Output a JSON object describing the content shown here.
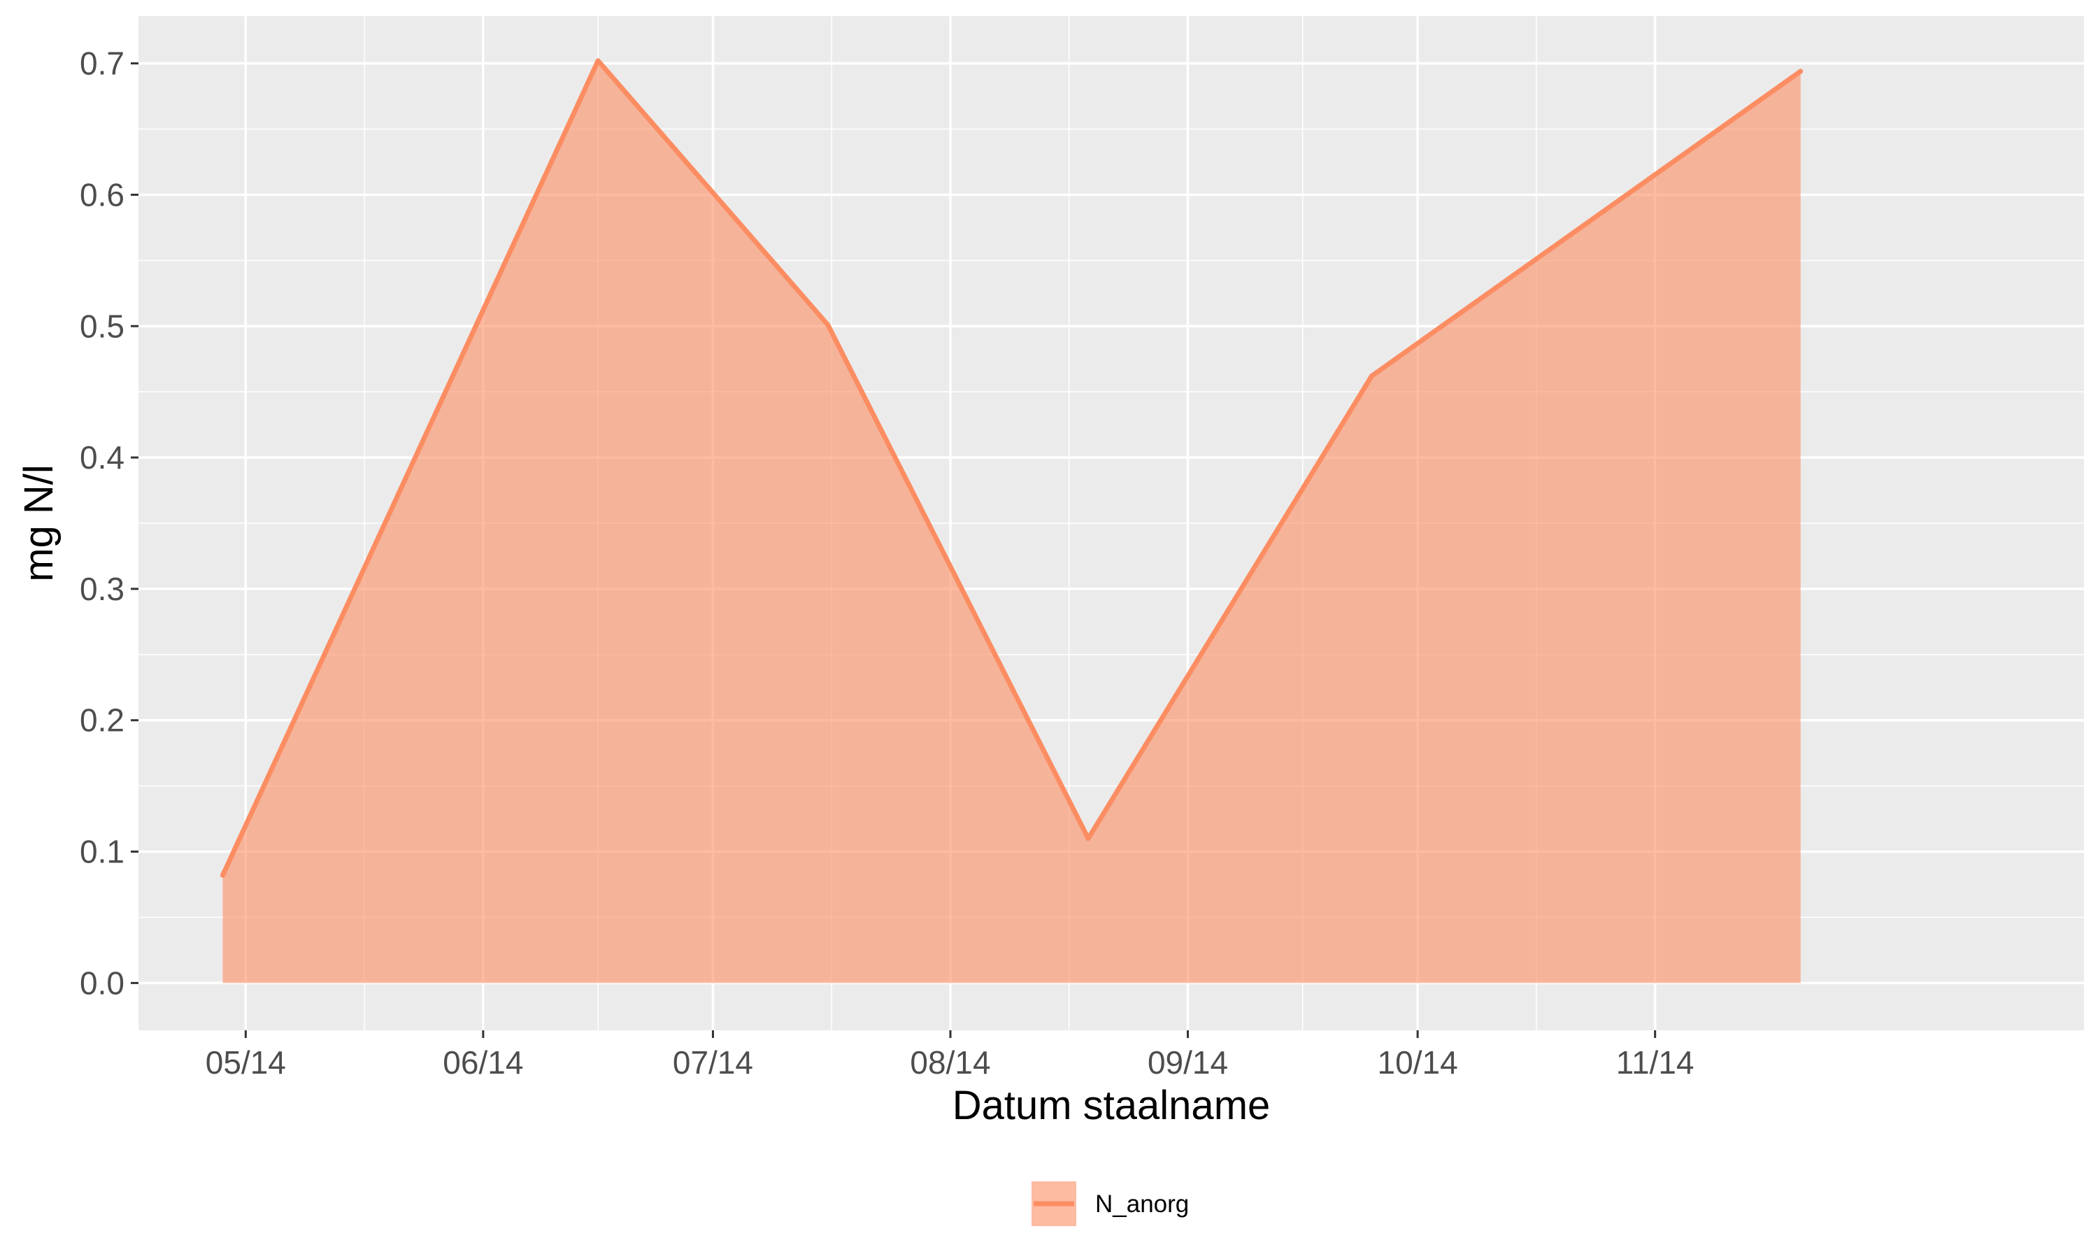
{
  "chart_data": {
    "type": "area",
    "xlabel": "Datum staalname",
    "ylabel": "mg N/l",
    "x_tick_labels": [
      "05/14",
      "06/14",
      "07/14",
      "08/14",
      "09/14",
      "10/14",
      "11/14"
    ],
    "x_tick_dates": [
      "2014-05-01",
      "2014-06-01",
      "2014-07-01",
      "2014-08-01",
      "2014-09-01",
      "2014-10-01",
      "2014-11-01"
    ],
    "xlim": [
      "2014-04-17",
      "2014-12-27"
    ],
    "y_tick_labels": [
      "0.0",
      "0.1",
      "0.2",
      "0.3",
      "0.4",
      "0.5",
      "0.6",
      "0.7"
    ],
    "y_ticks": [
      0.0,
      0.1,
      0.2,
      0.3,
      0.4,
      0.5,
      0.6,
      0.7
    ],
    "ylim": [
      -0.036,
      0.736
    ],
    "grid": true,
    "legend_position": "bottom",
    "series": [
      {
        "name": "N_anorg",
        "color": "#fc8d62",
        "x": [
          "2014-04-28",
          "2014-06-16",
          "2014-07-16",
          "2014-08-19",
          "2014-09-25",
          "2014-11-20"
        ],
        "values": [
          0.082,
          0.702,
          0.501,
          0.11,
          0.462,
          0.694
        ]
      }
    ]
  }
}
